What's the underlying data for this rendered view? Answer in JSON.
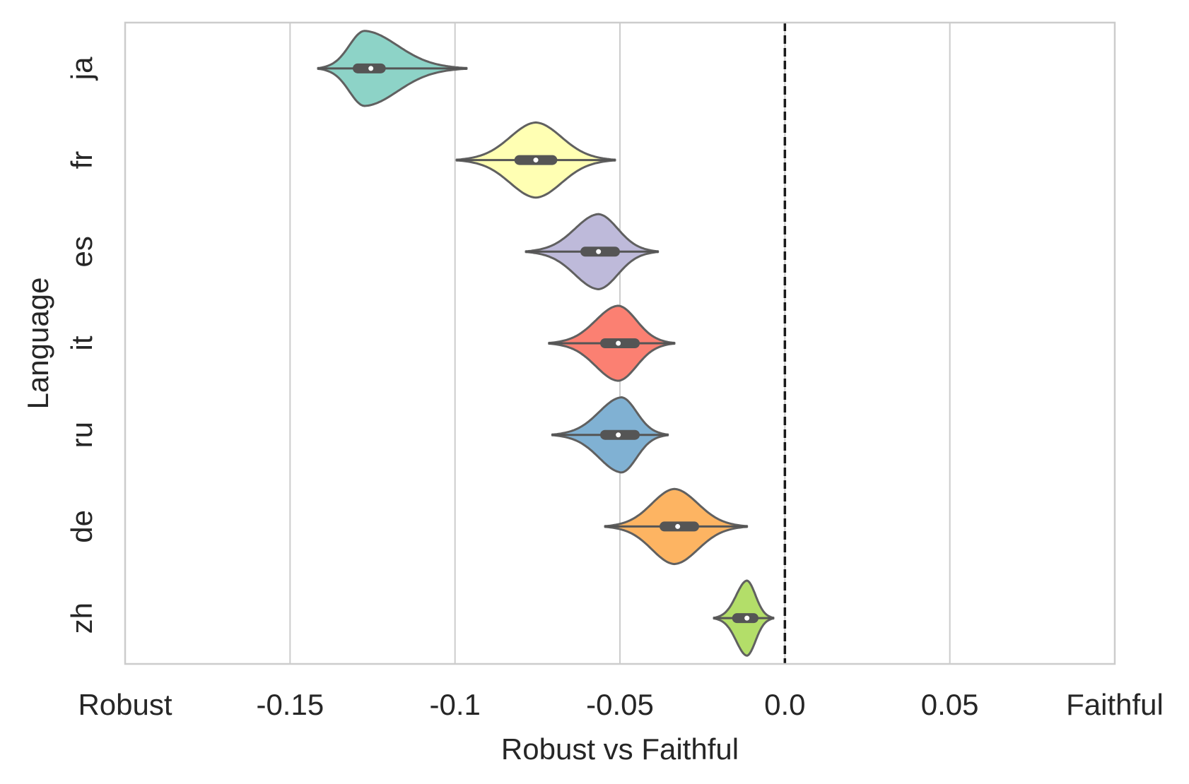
{
  "chart_data": {
    "type": "violin",
    "orientation": "horizontal",
    "xlabel": "Robust vs Faithful",
    "ylabel": "Language",
    "xlim": [
      -0.2,
      0.1
    ],
    "x_ticks": [
      {
        "value": -0.2,
        "label": "Robust"
      },
      {
        "value": -0.15,
        "label": "-0.15"
      },
      {
        "value": -0.1,
        "label": "-0.1"
      },
      {
        "value": -0.05,
        "label": "-0.05"
      },
      {
        "value": 0.0,
        "label": "0.0"
      },
      {
        "value": 0.05,
        "label": "0.05"
      },
      {
        "value": 0.1,
        "label": "Faithful"
      }
    ],
    "reference_line": {
      "x": 0.0,
      "style": "dashed",
      "color": "#1a1a1a"
    },
    "grid": {
      "x": true,
      "y": false
    },
    "categories": [
      "ja",
      "fr",
      "es",
      "it",
      "ru",
      "de",
      "zh"
    ],
    "series": [
      {
        "category": "ja",
        "color": "#8dd3c7",
        "min": -0.1415,
        "max": -0.0965,
        "q1": -0.1295,
        "median": -0.1255,
        "q3": -0.1225,
        "peak": -0.1275
      },
      {
        "category": "fr",
        "color": "#ffffb3",
        "min": -0.0995,
        "max": -0.0515,
        "q1": -0.0805,
        "median": -0.0755,
        "q3": -0.0705,
        "peak": -0.0755
      },
      {
        "category": "es",
        "color": "#bebada",
        "min": -0.0785,
        "max": -0.0385,
        "q1": -0.0605,
        "median": -0.0565,
        "q3": -0.0515,
        "peak": -0.0565
      },
      {
        "category": "it",
        "color": "#fb8072",
        "min": -0.0715,
        "max": -0.0335,
        "q1": -0.0545,
        "median": -0.0505,
        "q3": -0.0455,
        "peak": -0.0505
      },
      {
        "category": "ru",
        "color": "#80b1d3",
        "min": -0.0705,
        "max": -0.0355,
        "q1": -0.0545,
        "median": -0.0505,
        "q3": -0.0455,
        "peak": -0.0495
      },
      {
        "category": "de",
        "color": "#fdb462",
        "min": -0.0545,
        "max": -0.0115,
        "q1": -0.0365,
        "median": -0.0325,
        "q3": -0.0275,
        "peak": -0.0335
      },
      {
        "category": "zh",
        "color": "#b3de69",
        "min": -0.0215,
        "max": -0.0035,
        "q1": -0.0145,
        "median": -0.0115,
        "q3": -0.0095,
        "peak": -0.0115
      }
    ],
    "style": {
      "edge_color": "#606060",
      "box_color": "#555555",
      "median_marker": "#ffffff",
      "grid_color": "#cccccc",
      "spine_color": "#cccccc"
    }
  }
}
